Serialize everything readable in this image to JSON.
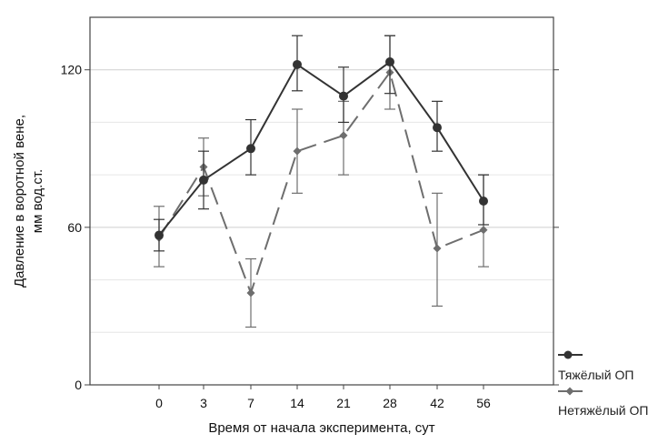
{
  "chart_data": {
    "type": "line",
    "categories": [
      "0",
      "3",
      "7",
      "14",
      "21",
      "28",
      "42",
      "56"
    ],
    "xlabel": "Время от начала эксперимента, сут",
    "ylabel_line1": "Давление в воротной вене,",
    "ylabel_line2": "мм вод.ст.",
    "ylim": [
      0,
      140
    ],
    "yticks": [
      0,
      60,
      120
    ],
    "ytick_labels": [
      "0",
      "60",
      "120"
    ],
    "minor_grid": [
      20,
      40,
      80,
      100,
      140
    ],
    "series": [
      {
        "name": "Тяжёлый ОП",
        "color": "#333333",
        "marker": "circle",
        "dash": "solid",
        "values": [
          57,
          78,
          90,
          122,
          110,
          123,
          98,
          70
        ],
        "err_low": [
          51,
          67,
          80,
          112,
          100,
          111,
          89,
          61
        ],
        "err_high": [
          63,
          89,
          101,
          133,
          121,
          133,
          108,
          80
        ]
      },
      {
        "name": "Нетяжёлый ОП",
        "color": "#6e6e6e",
        "marker": "diamond",
        "dash": "long-dash",
        "values": [
          56,
          83,
          35,
          89,
          95,
          119,
          52,
          59
        ],
        "err_low": [
          45,
          72,
          22,
          73,
          80,
          105,
          30,
          45
        ],
        "err_high": [
          68,
          94,
          48,
          105,
          108,
          133,
          73,
          80
        ]
      }
    ]
  }
}
